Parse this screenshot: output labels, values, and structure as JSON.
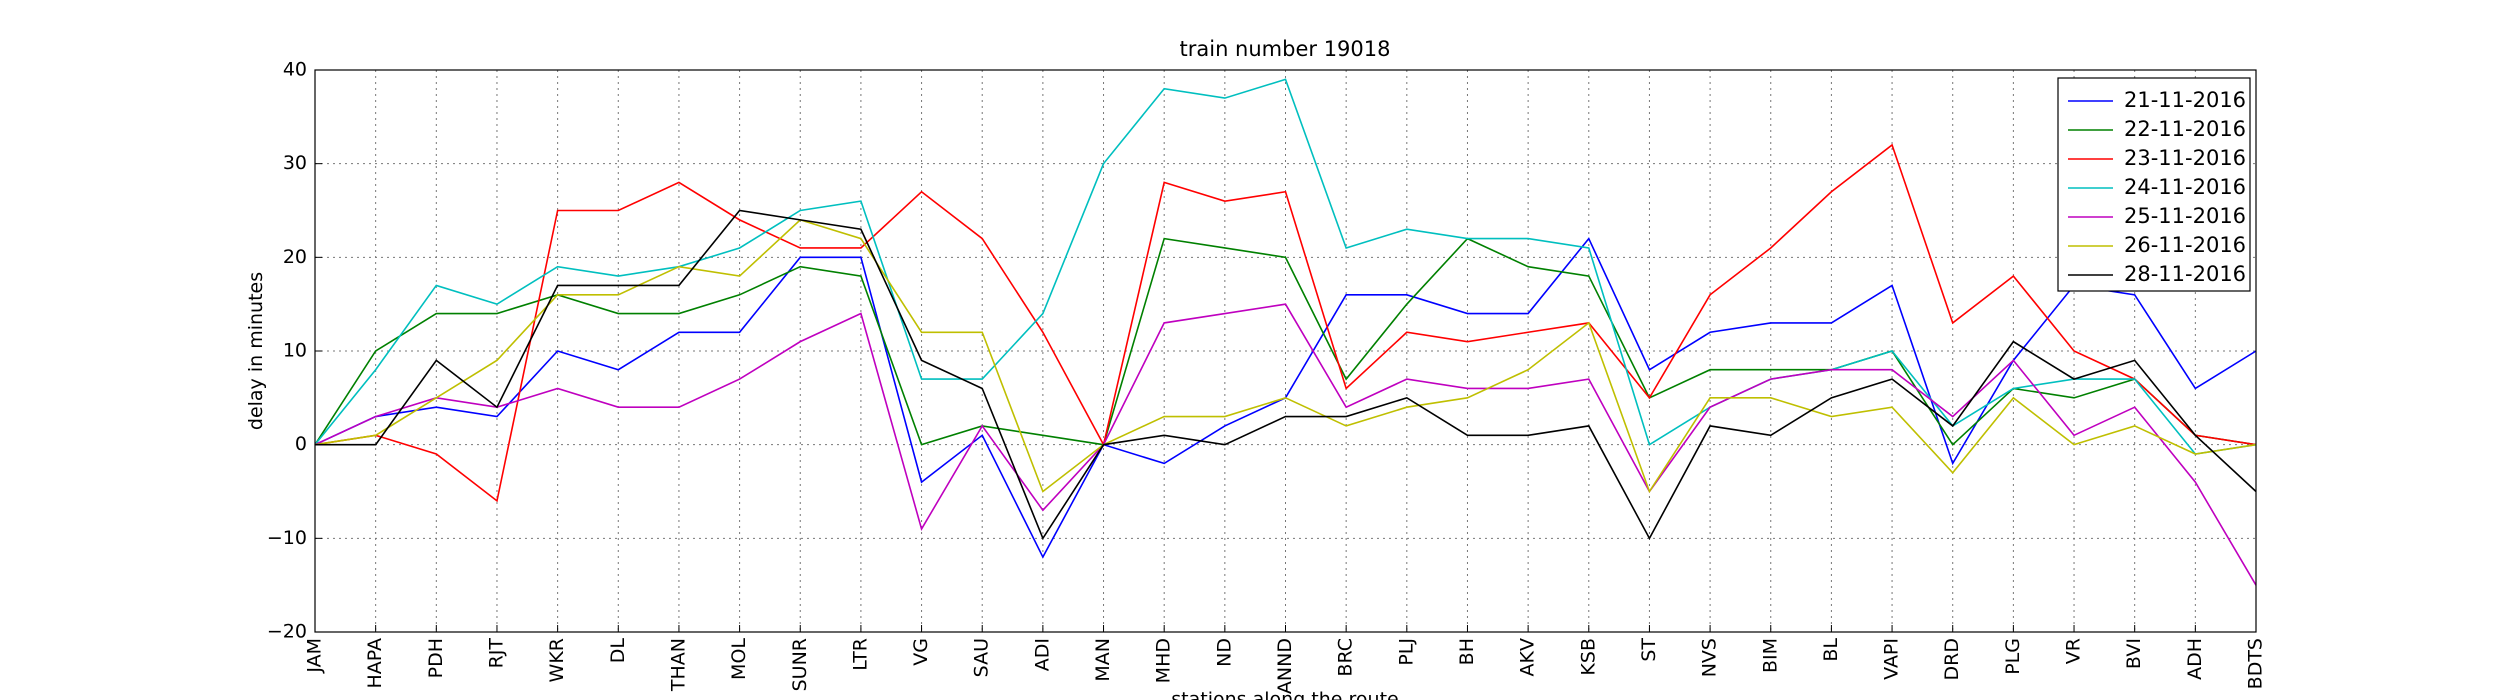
{
  "chart_data": {
    "type": "line",
    "title": "train number 19018",
    "x_label": "stations along the route",
    "y_label": "delay in minutes",
    "categories": [
      "JAM",
      "HAPA",
      "PDH",
      "RJT",
      "WKR",
      "DL",
      "THAN",
      "MOL",
      "SUNR",
      "LTR",
      "VG",
      "SAU",
      "ADI",
      "MAN",
      "MHD",
      "ND",
      "ANND",
      "BRC",
      "PLJ",
      "BH",
      "AKV",
      "KSB",
      "ST",
      "NVS",
      "BIM",
      "BL",
      "VAPI",
      "DRD",
      "PLG",
      "VR",
      "BVI",
      "ADH",
      "BDTS"
    ],
    "ylim": [
      -20,
      40
    ],
    "yticks": [
      {
        "value": -20,
        "label": "−20"
      },
      {
        "value": -10,
        "label": "−10"
      },
      0,
      10,
      20,
      30,
      40
    ],
    "grid": true,
    "legend": "upper right",
    "series": [
      {
        "name": "21-11-2016",
        "color": "#0000ff",
        "values": [
          0,
          3,
          4,
          3,
          10,
          8,
          12,
          12,
          20,
          20,
          -4,
          1,
          -12,
          0,
          -2,
          2,
          5,
          16,
          16,
          14,
          14,
          22,
          8,
          12,
          13,
          13,
          17,
          -2,
          9,
          17,
          16,
          6,
          10
        ]
      },
      {
        "name": "22-11-2016",
        "color": "#008000",
        "values": [
          0,
          10,
          14,
          14,
          16,
          14,
          14,
          16,
          19,
          18,
          0,
          2,
          1,
          0,
          22,
          21,
          20,
          7,
          15,
          22,
          19,
          18,
          5,
          8,
          8,
          8,
          10,
          0,
          6,
          5,
          7,
          1,
          0
        ]
      },
      {
        "name": "23-11-2016",
        "color": "#ff0000",
        "values": [
          0,
          1,
          -1,
          -6,
          25,
          25,
          28,
          24,
          21,
          21,
          27,
          22,
          12,
          0,
          28,
          26,
          27,
          6,
          12,
          11,
          12,
          13,
          5,
          16,
          21,
          27,
          32,
          13,
          18,
          10,
          7,
          1,
          0
        ]
      },
      {
        "name": "24-11-2016",
        "color": "#00bfbf",
        "values": [
          0,
          8,
          17,
          15,
          19,
          18,
          19,
          21,
          25,
          26,
          7,
          7,
          14,
          30,
          38,
          37,
          39,
          21,
          23,
          22,
          22,
          21,
          0,
          4,
          7,
          8,
          10,
          2,
          6,
          7,
          7,
          -1,
          0
        ]
      },
      {
        "name": "25-11-2016",
        "color": "#bf00bf",
        "values": [
          0,
          3,
          5,
          4,
          6,
          4,
          4,
          7,
          11,
          14,
          -9,
          2,
          -7,
          0,
          13,
          14,
          15,
          4,
          7,
          6,
          6,
          7,
          -5,
          4,
          7,
          8,
          8,
          3,
          9,
          1,
          4,
          -4,
          -15
        ]
      },
      {
        "name": "26-11-2016",
        "color": "#bfbf00",
        "values": [
          0,
          1,
          5,
          9,
          16,
          16,
          19,
          18,
          24,
          22,
          12,
          12,
          -5,
          0,
          3,
          3,
          5,
          2,
          4,
          5,
          8,
          13,
          -5,
          5,
          5,
          3,
          4,
          -3,
          5,
          0,
          2,
          -1,
          0
        ]
      },
      {
        "name": "28-11-2016",
        "color": "#000000",
        "values": [
          0,
          0,
          9,
          4,
          17,
          17,
          17,
          25,
          24,
          23,
          9,
          6,
          -10,
          0,
          1,
          0,
          3,
          3,
          5,
          1,
          1,
          2,
          -10,
          2,
          1,
          5,
          7,
          2,
          11,
          7,
          9,
          1,
          -5
        ]
      }
    ]
  }
}
